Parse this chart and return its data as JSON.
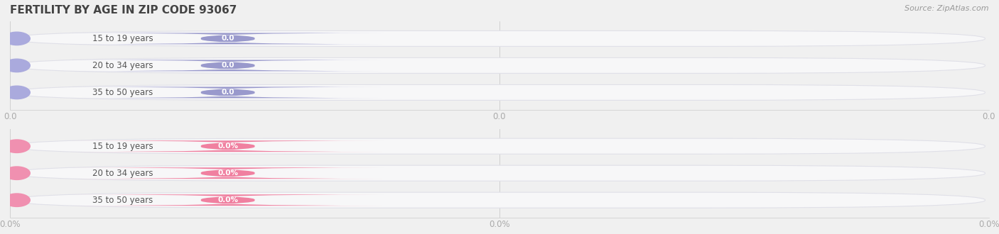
{
  "title": "FERTILITY BY AGE IN ZIP CODE 93067",
  "source": "Source: ZipAtlas.com",
  "bg_color": "#f0f0f0",
  "bar_bg_color": "#f7f7f8",
  "bar_stroke": "#e0e0e8",
  "categories": [
    "15 to 19 years",
    "20 to 34 years",
    "35 to 50 years"
  ],
  "group1_bar_color": "#9999cc",
  "group1_circle_color": "#aaaadd",
  "group1_value_strs": [
    "0.0",
    "0.0",
    "0.0"
  ],
  "group1_xtick_labels": [
    "0.0",
    "0.0",
    "0.0"
  ],
  "group2_bar_color": "#f080a0",
  "group2_circle_color": "#f090b0",
  "group2_value_strs": [
    "0.0%",
    "0.0%",
    "0.0%"
  ],
  "group2_xtick_labels": [
    "0.0%",
    "0.0%",
    "0.0%"
  ],
  "max_val": 1.0,
  "title_fontsize": 11,
  "label_fontsize": 8.5,
  "value_fontsize": 7.5,
  "tick_fontsize": 8.5,
  "source_fontsize": 8
}
